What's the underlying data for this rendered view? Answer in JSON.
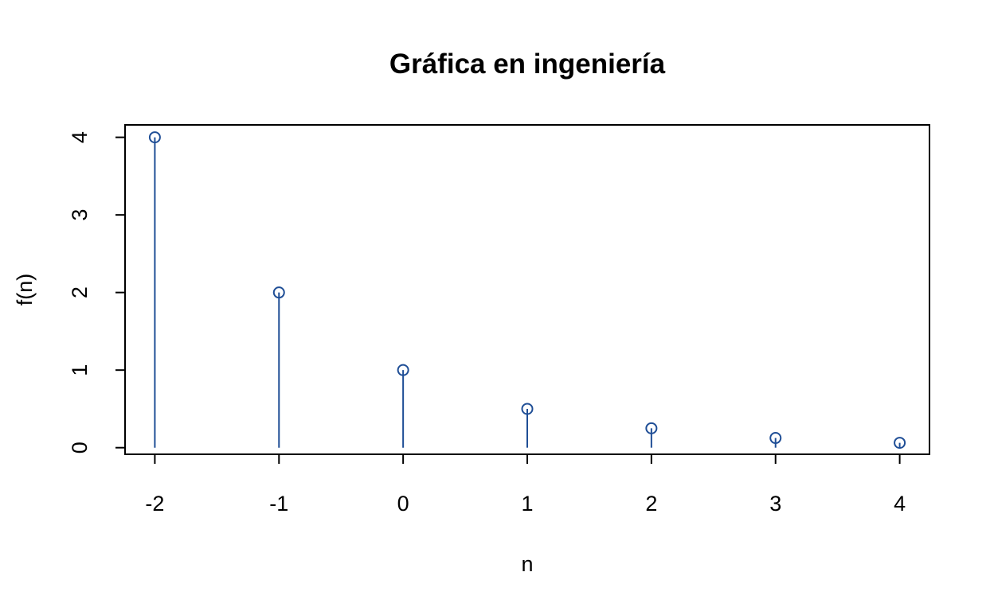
{
  "chart_data": {
    "type": "scatter",
    "style": "stem",
    "title": "Gráfica en ingeniería",
    "xlabel": "n",
    "ylabel": "f(n)",
    "x": [
      -2,
      -1,
      0,
      1,
      2,
      3,
      4
    ],
    "y": [
      4,
      2,
      1,
      0.5,
      0.25,
      0.125,
      0.0625
    ],
    "xlim": [
      -2.24,
      4.24
    ],
    "ylim": [
      -0.085,
      4.16
    ],
    "xticks": [
      "-2",
      "-1",
      "0",
      "1",
      "2",
      "3",
      "4"
    ],
    "yticks": [
      "0",
      "1",
      "2",
      "3",
      "4"
    ],
    "grid": false,
    "legend": "none",
    "marker": "open-circle",
    "color": "#1f4e96"
  }
}
